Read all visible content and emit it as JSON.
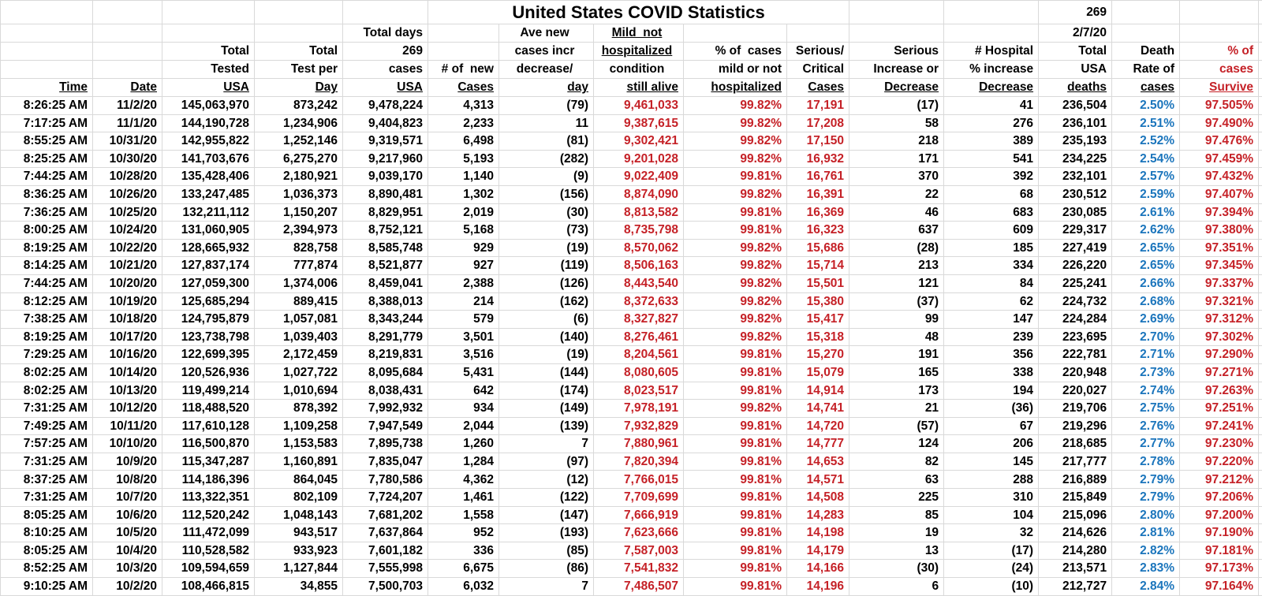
{
  "sheet": {
    "title": "United States COVID Statistics",
    "top_right_days": "269",
    "top_right_date": "2/7/20"
  },
  "colors": {
    "value_red": "#C52127",
    "value_blue": "#1B75BC",
    "text_black": "#000000",
    "gridline": "#d9d9d9"
  },
  "column_ids": [
    "time",
    "date",
    "total-tested-usa",
    "total-test-per-day",
    "total-cases-usa",
    "new-cases",
    "avg-new-cases-change",
    "mild-not-hospitalized",
    "pct-mild-not-hospitalized",
    "serious-critical-cases",
    "serious-increase-decrease",
    "hospital-increase-decrease",
    "total-usa-deaths",
    "death-rate",
    "pct-survive"
  ],
  "header_lines": [
    [
      "",
      "",
      "",
      "",
      "Total days",
      "",
      "Ave new",
      "Mild  not",
      "",
      "",
      "",
      "",
      "2/7/20",
      "",
      ""
    ],
    [
      "",
      "",
      "Total",
      "Total",
      "269",
      "",
      "cases incr",
      "hospitalized",
      "% of  cases",
      "Serious/",
      "Serious",
      "# Hospital",
      "Total",
      "Death",
      "% of"
    ],
    [
      "",
      "",
      "Tested",
      "Test per",
      "cases",
      "# of  new",
      "decrease/",
      "condition",
      "mild or not",
      "Critical",
      "Increase or",
      "% increase",
      "USA",
      "Rate of",
      "cases"
    ],
    [
      "Time",
      "Date",
      "USA",
      "Day",
      "USA",
      "Cases",
      "day",
      "still alive",
      "hospitalized",
      "Cases",
      "Decrease",
      "Decrease",
      "deaths",
      "cases",
      "Survive"
    ]
  ],
  "rows": [
    [
      "8:26:25 AM",
      "11/2/20",
      "145,063,970",
      "873,242",
      "9,478,224",
      "4,313",
      "(79)",
      "9,461,033",
      "99.82%",
      "17,191",
      "(17)",
      "41",
      "236,504",
      "2.50%",
      "97.505%"
    ],
    [
      "7:17:25 AM",
      "11/1/20",
      "144,190,728",
      "1,234,906",
      "9,404,823",
      "2,233",
      "11",
      "9,387,615",
      "99.82%",
      "17,208",
      "58",
      "276",
      "236,101",
      "2.51%",
      "97.490%"
    ],
    [
      "8:55:25 AM",
      "10/31/20",
      "142,955,822",
      "1,252,146",
      "9,319,571",
      "6,498",
      "(81)",
      "9,302,421",
      "99.82%",
      "17,150",
      "218",
      "389",
      "235,193",
      "2.52%",
      "97.476%"
    ],
    [
      "8:25:25 AM",
      "10/30/20",
      "141,703,676",
      "6,275,270",
      "9,217,960",
      "5,193",
      "(282)",
      "9,201,028",
      "99.82%",
      "16,932",
      "171",
      "541",
      "234,225",
      "2.54%",
      "97.459%"
    ],
    [
      "7:44:25 AM",
      "10/28/20",
      "135,428,406",
      "2,180,921",
      "9,039,170",
      "1,140",
      "(9)",
      "9,022,409",
      "99.81%",
      "16,761",
      "370",
      "392",
      "232,101",
      "2.57%",
      "97.432%"
    ],
    [
      "8:36:25 AM",
      "10/26/20",
      "133,247,485",
      "1,036,373",
      "8,890,481",
      "1,302",
      "(156)",
      "8,874,090",
      "99.82%",
      "16,391",
      "22",
      "68",
      "230,512",
      "2.59%",
      "97.407%"
    ],
    [
      "7:36:25 AM",
      "10/25/20",
      "132,211,112",
      "1,150,207",
      "8,829,951",
      "2,019",
      "(30)",
      "8,813,582",
      "99.81%",
      "16,369",
      "46",
      "683",
      "230,085",
      "2.61%",
      "97.394%"
    ],
    [
      "8:00:25 AM",
      "10/24/20",
      "131,060,905",
      "2,394,973",
      "8,752,121",
      "5,168",
      "(73)",
      "8,735,798",
      "99.81%",
      "16,323",
      "637",
      "609",
      "229,317",
      "2.62%",
      "97.380%"
    ],
    [
      "8:19:25 AM",
      "10/22/20",
      "128,665,932",
      "828,758",
      "8,585,748",
      "929",
      "(19)",
      "8,570,062",
      "99.82%",
      "15,686",
      "(28)",
      "185",
      "227,419",
      "2.65%",
      "97.351%"
    ],
    [
      "8:14:25 AM",
      "10/21/20",
      "127,837,174",
      "777,874",
      "8,521,877",
      "927",
      "(119)",
      "8,506,163",
      "99.82%",
      "15,714",
      "213",
      "334",
      "226,220",
      "2.65%",
      "97.345%"
    ],
    [
      "7:44:25 AM",
      "10/20/20",
      "127,059,300",
      "1,374,006",
      "8,459,041",
      "2,388",
      "(126)",
      "8,443,540",
      "99.82%",
      "15,501",
      "121",
      "84",
      "225,241",
      "2.66%",
      "97.337%"
    ],
    [
      "8:12:25 AM",
      "10/19/20",
      "125,685,294",
      "889,415",
      "8,388,013",
      "214",
      "(162)",
      "8,372,633",
      "99.82%",
      "15,380",
      "(37)",
      "62",
      "224,732",
      "2.68%",
      "97.321%"
    ],
    [
      "7:38:25 AM",
      "10/18/20",
      "124,795,879",
      "1,057,081",
      "8,343,244",
      "579",
      "(6)",
      "8,327,827",
      "99.82%",
      "15,417",
      "99",
      "147",
      "224,284",
      "2.69%",
      "97.312%"
    ],
    [
      "8:19:25 AM",
      "10/17/20",
      "123,738,798",
      "1,039,403",
      "8,291,779",
      "3,501",
      "(140)",
      "8,276,461",
      "99.82%",
      "15,318",
      "48",
      "239",
      "223,695",
      "2.70%",
      "97.302%"
    ],
    [
      "7:29:25 AM",
      "10/16/20",
      "122,699,395",
      "2,172,459",
      "8,219,831",
      "3,516",
      "(19)",
      "8,204,561",
      "99.81%",
      "15,270",
      "191",
      "356",
      "222,781",
      "2.71%",
      "97.290%"
    ],
    [
      "8:02:25 AM",
      "10/14/20",
      "120,526,936",
      "1,027,722",
      "8,095,684",
      "5,431",
      "(144)",
      "8,080,605",
      "99.81%",
      "15,079",
      "165",
      "338",
      "220,948",
      "2.73%",
      "97.271%"
    ],
    [
      "8:02:25 AM",
      "10/13/20",
      "119,499,214",
      "1,010,694",
      "8,038,431",
      "642",
      "(174)",
      "8,023,517",
      "99.81%",
      "14,914",
      "173",
      "194",
      "220,027",
      "2.74%",
      "97.263%"
    ],
    [
      "7:31:25 AM",
      "10/12/20",
      "118,488,520",
      "878,392",
      "7,992,932",
      "934",
      "(149)",
      "7,978,191",
      "99.82%",
      "14,741",
      "21",
      "(36)",
      "219,706",
      "2.75%",
      "97.251%"
    ],
    [
      "7:49:25 AM",
      "10/11/20",
      "117,610,128",
      "1,109,258",
      "7,947,549",
      "2,044",
      "(139)",
      "7,932,829",
      "99.81%",
      "14,720",
      "(57)",
      "67",
      "219,296",
      "2.76%",
      "97.241%"
    ],
    [
      "7:57:25 AM",
      "10/10/20",
      "116,500,870",
      "1,153,583",
      "7,895,738",
      "1,260",
      "7",
      "7,880,961",
      "99.81%",
      "14,777",
      "124",
      "206",
      "218,685",
      "2.77%",
      "97.230%"
    ],
    [
      "7:31:25 AM",
      "10/9/20",
      "115,347,287",
      "1,160,891",
      "7,835,047",
      "1,284",
      "(97)",
      "7,820,394",
      "99.81%",
      "14,653",
      "82",
      "145",
      "217,777",
      "2.78%",
      "97.220%"
    ],
    [
      "8:37:25 AM",
      "10/8/20",
      "114,186,396",
      "864,045",
      "7,780,586",
      "4,362",
      "(12)",
      "7,766,015",
      "99.81%",
      "14,571",
      "63",
      "288",
      "216,889",
      "2.79%",
      "97.212%"
    ],
    [
      "7:31:25 AM",
      "10/7/20",
      "113,322,351",
      "802,109",
      "7,724,207",
      "1,461",
      "(122)",
      "7,709,699",
      "99.81%",
      "14,508",
      "225",
      "310",
      "215,849",
      "2.79%",
      "97.206%"
    ],
    [
      "8:05:25 AM",
      "10/6/20",
      "112,520,242",
      "1,048,143",
      "7,681,202",
      "1,558",
      "(147)",
      "7,666,919",
      "99.81%",
      "14,283",
      "85",
      "104",
      "215,096",
      "2.80%",
      "97.200%"
    ],
    [
      "8:10:25 AM",
      "10/5/20",
      "111,472,099",
      "943,517",
      "7,637,864",
      "952",
      "(193)",
      "7,623,666",
      "99.81%",
      "14,198",
      "19",
      "32",
      "214,626",
      "2.81%",
      "97.190%"
    ],
    [
      "8:05:25 AM",
      "10/4/20",
      "110,528,582",
      "933,923",
      "7,601,182",
      "336",
      "(85)",
      "7,587,003",
      "99.81%",
      "14,179",
      "13",
      "(17)",
      "214,280",
      "2.82%",
      "97.181%"
    ],
    [
      "8:52:25 AM",
      "10/3/20",
      "109,594,659",
      "1,127,844",
      "7,555,998",
      "6,675",
      "(86)",
      "7,541,832",
      "99.81%",
      "14,166",
      "(30)",
      "(24)",
      "213,571",
      "2.83%",
      "97.173%"
    ],
    [
      "9:10:25 AM",
      "10/2/20",
      "108,466,815",
      "34,855",
      "7,500,703",
      "6,032",
      "7",
      "7,486,507",
      "99.81%",
      "14,196",
      "6",
      "(10)",
      "212,727",
      "2.84%",
      "97.164%"
    ]
  ]
}
